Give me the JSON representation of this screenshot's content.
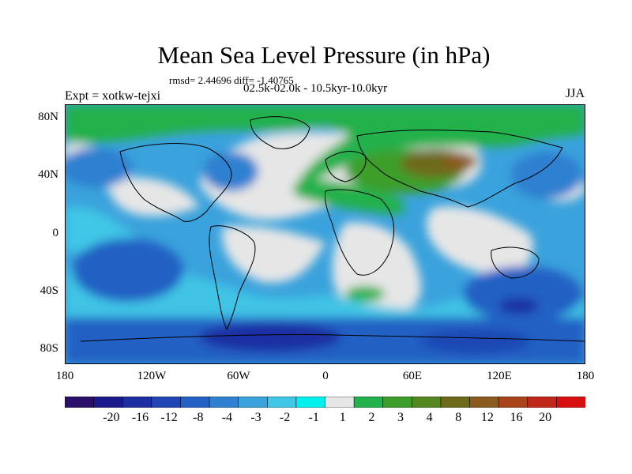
{
  "title": "Mean Sea Level Pressure (in hPa)",
  "stats": "rmsd= 2.44696 diff= -1.40765",
  "period": "02.5k-02.0k - 10.5kyr-10.0kyr",
  "expt": "Expt = xotkw-tejxi",
  "season": "JJA",
  "lat_labels": [
    "80N",
    "40N",
    "0",
    "40S",
    "80S"
  ],
  "lon_labels": [
    "180",
    "120W",
    "60W",
    "0",
    "60E",
    "120E",
    "180"
  ],
  "colorbar": {
    "labels": [
      "-20",
      "-16",
      "-12",
      "-8",
      "-4",
      "-3",
      "-2",
      "-1",
      "1",
      "2",
      "3",
      "4",
      "8",
      "12",
      "16",
      "20"
    ],
    "colors": [
      "#2a0f6b",
      "#1a1a8c",
      "#1d2ea3",
      "#1f46b4",
      "#2461c4",
      "#2f80d0",
      "#3aa2dc",
      "#40c6e6",
      "#00f0f0",
      "#e6e6e6",
      "#22b14c",
      "#3d9e2b",
      "#54871f",
      "#6e6a1c",
      "#8b5a1e",
      "#a8431b",
      "#c0261a",
      "#d80f0f"
    ]
  }
}
